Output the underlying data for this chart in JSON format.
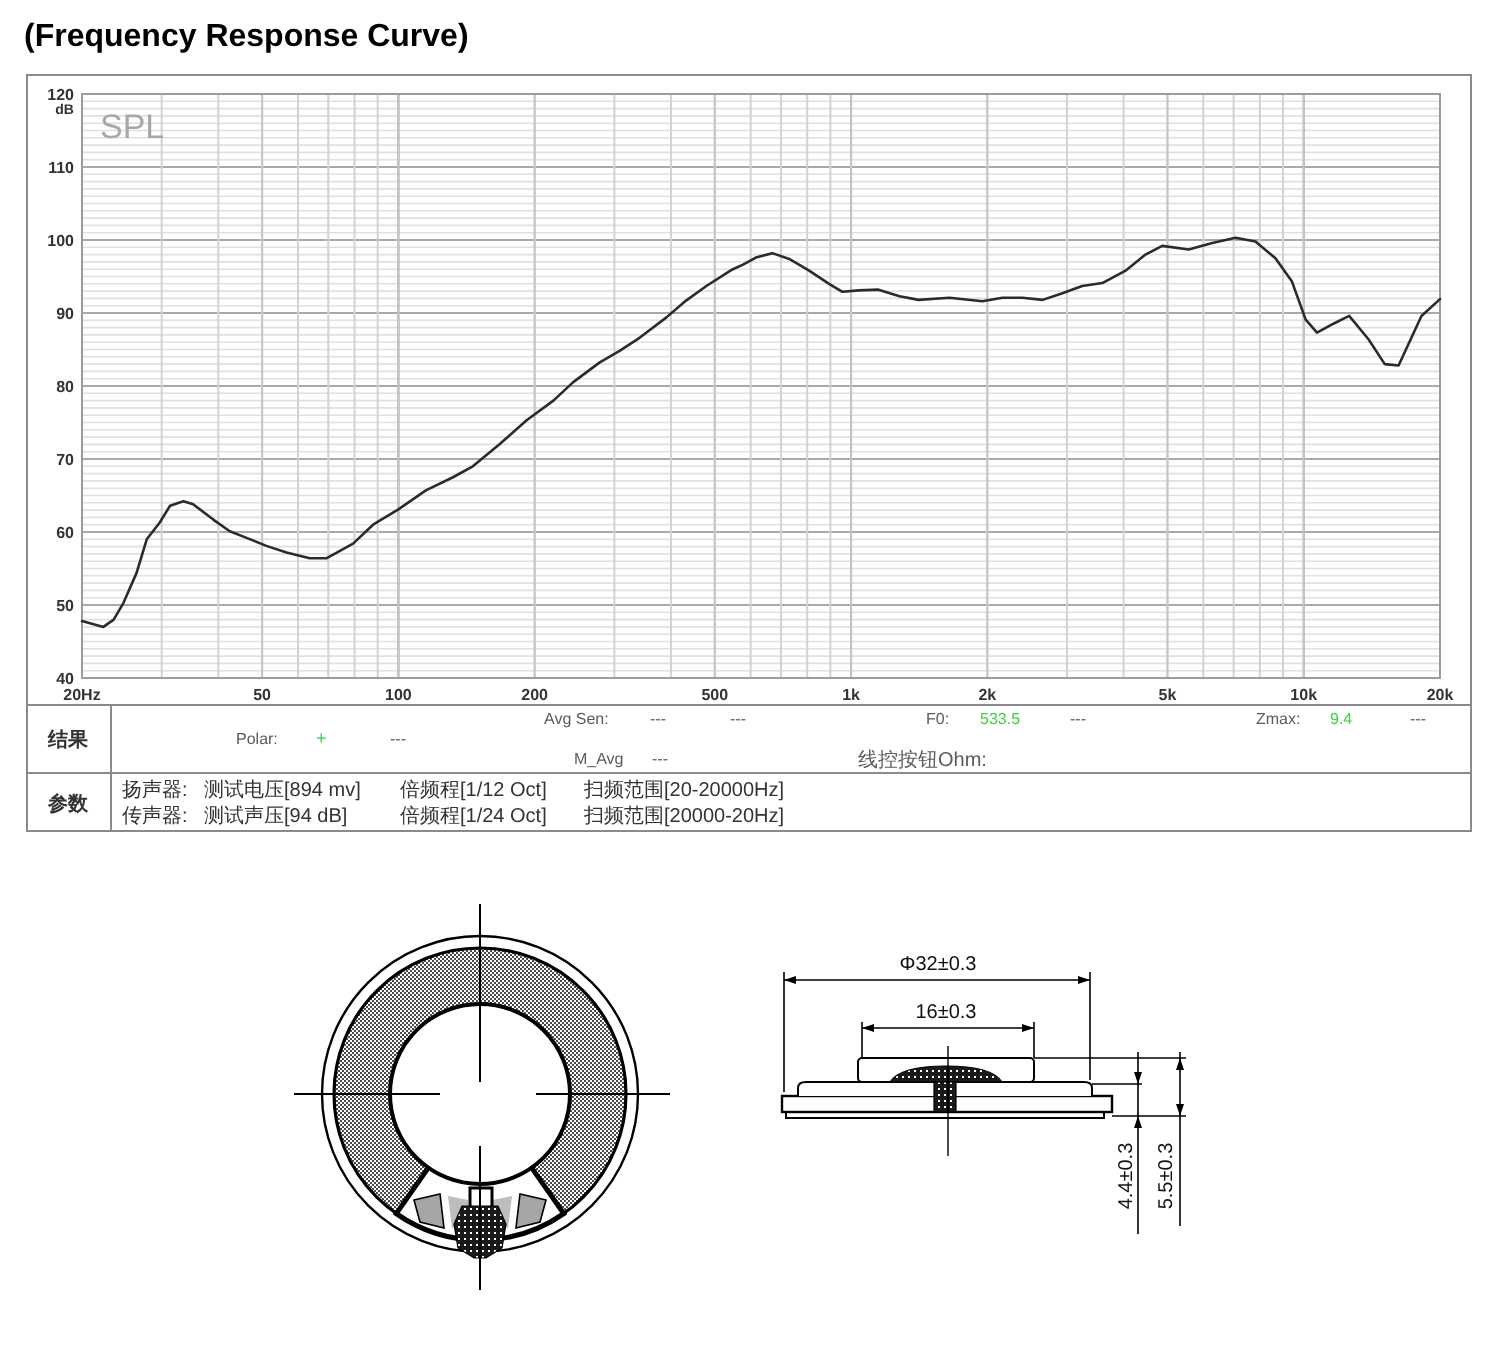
{
  "chart_data": {
    "type": "line",
    "title": "(Frequency Response Curve)",
    "ylabel": "dB",
    "color": "#2b2b2b",
    "log": "x",
    "grid": true,
    "xlim": [
      20,
      20000
    ],
    "ylim": [
      40,
      120
    ],
    "xticks": [
      {
        "value": 20,
        "label": "20Hz"
      },
      50,
      100,
      200,
      500,
      {
        "value": 1000,
        "label": "1k"
      },
      {
        "value": 2000,
        "label": "2k"
      },
      {
        "value": 5000,
        "label": "5k"
      },
      {
        "value": 10000,
        "label": "10k"
      },
      {
        "value": 20000,
        "label": "20k"
      }
    ],
    "yticks": [
      40,
      50,
      60,
      70,
      80,
      90,
      100,
      110,
      120
    ],
    "x": [
      20,
      22.3,
      23.5,
      24.7,
      26.4,
      27.8,
      29.7,
      31.3,
      33.5,
      35.2,
      39,
      42.4,
      46.2,
      51.1,
      56.6,
      63.7,
      69.3,
      79.4,
      87.9,
      100,
      115,
      132,
      146,
      167,
      192,
      220,
      243,
      278,
      308,
      341,
      391,
      432,
      479,
      548,
      576,
      616,
      670,
      730,
      808,
      894,
      957,
      1040,
      1150,
      1280,
      1410,
      1650,
      1950,
      2160,
      2390,
      2650,
      2930,
      3240,
      3590,
      4040,
      4470,
      4870,
      5570,
      6280,
      7070,
      7820,
      8660,
      9420,
      10100,
      10700,
      11600,
      12600,
      13900,
      15100,
      16200,
      18200,
      20000
    ],
    "values": [
      47.8,
      47.0,
      48.0,
      50.3,
      54.4,
      59.0,
      61.3,
      63.6,
      64.2,
      63.8,
      61.7,
      60.1,
      59.2,
      58.1,
      57.2,
      56.4,
      56.4,
      58.4,
      61.0,
      63.1,
      65.7,
      67.5,
      69.0,
      72.0,
      75.3,
      78.0,
      80.5,
      83.2,
      84.8,
      86.6,
      89.4,
      91.7,
      93.7,
      96.0,
      96.6,
      97.6,
      98.2,
      97.4,
      95.8,
      94.0,
      92.9,
      93.1,
      93.2,
      92.3,
      91.8,
      92.1,
      91.6,
      92.1,
      92.1,
      91.8,
      92.7,
      93.7,
      94.1,
      95.8,
      98.0,
      99.2,
      98.7,
      99.6,
      100.3,
      99.8,
      97.5,
      94.3,
      89.1,
      87.3,
      88.5,
      89.6,
      86.4,
      83.0,
      82.8,
      89.6,
      91.9
    ],
    "annotations": [
      "SPL",
      "结果",
      "Avg Sen:",
      "---",
      "---",
      "F0:",
      "533.5",
      "---",
      "Zmax:",
      "9.4",
      "---",
      "Polar:",
      "+",
      "---",
      "M_Avg",
      "---",
      "线控按钮Ohm:",
      "参数",
      "扬声器:",
      "测试电压[894 mv]",
      "倍频程[1/12 Oct]",
      "扫频范围[20-20000Hz]",
      "传声器:",
      "测试声压[94 dB]",
      "倍频程[1/24 Oct]",
      "扫频范围[20000-20Hz]",
      "Φ32±0.3",
      "16±0.3",
      "4.4±0.3",
      "5.5±0.3"
    ]
  }
}
